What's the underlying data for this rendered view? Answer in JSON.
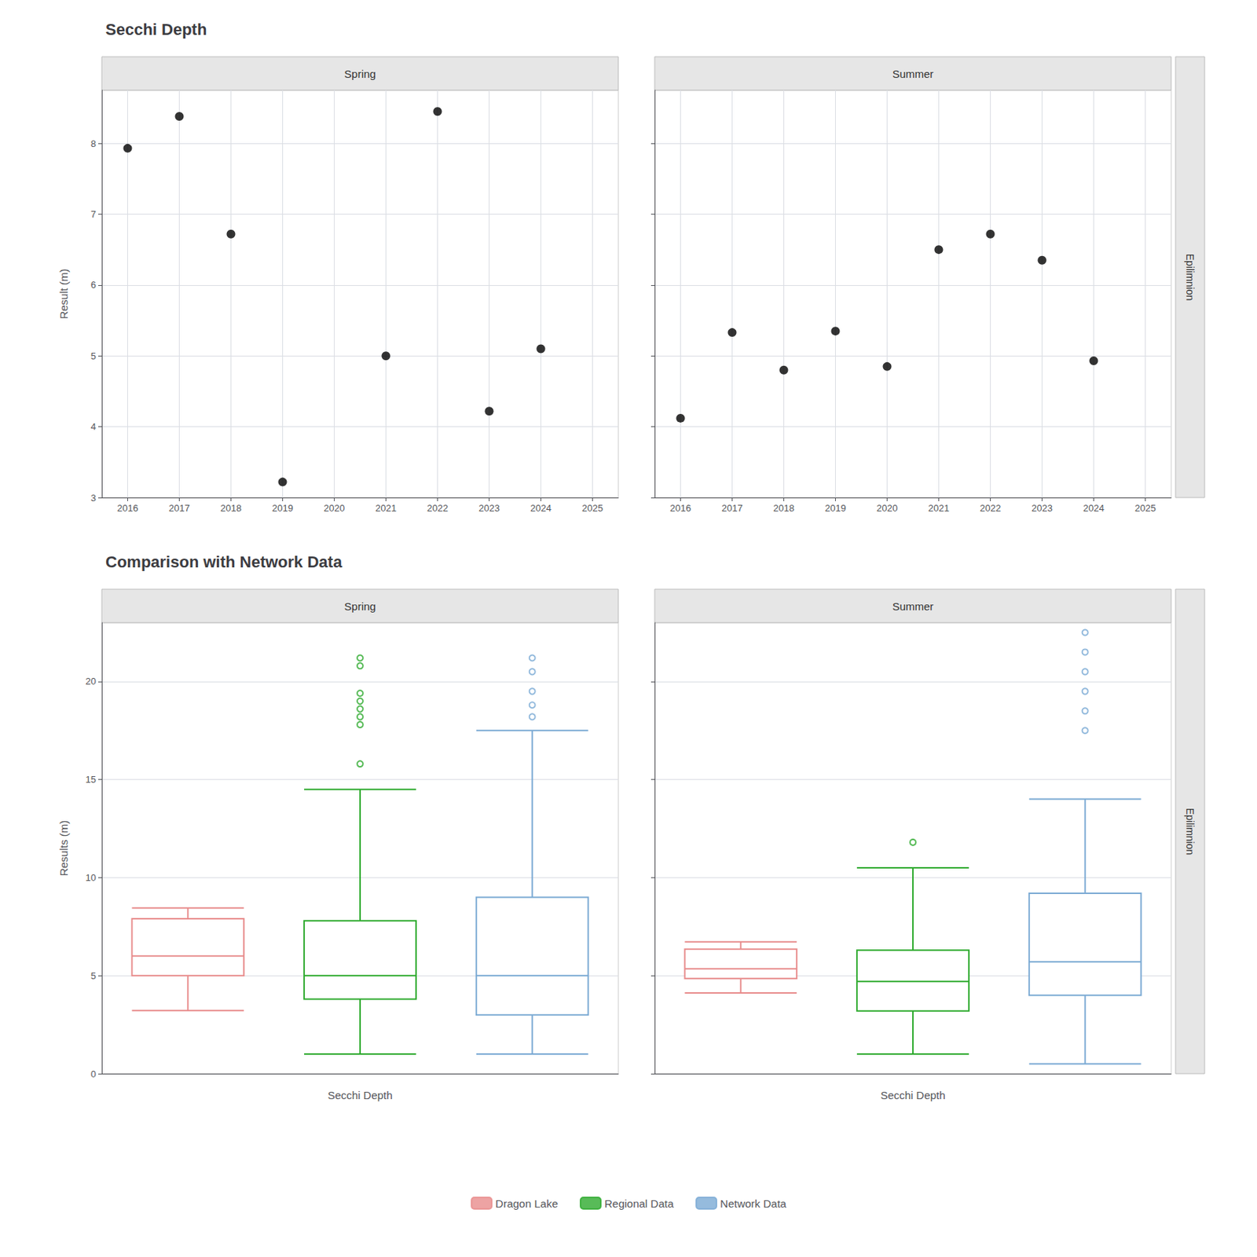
{
  "chart_data": [
    {
      "type": "scatter",
      "title": "Secchi Depth",
      "ylabel": "Result (m)",
      "annotation": "Epilimnion",
      "color": "#000000",
      "xlim": [
        2015.5,
        2025.5
      ],
      "xticks": [
        2016,
        2017,
        2018,
        2019,
        2020,
        2021,
        2022,
        2023,
        2024,
        2025
      ],
      "ylim": [
        3.0,
        8.75
      ],
      "yticks": [
        3,
        4,
        5,
        6,
        7,
        8
      ],
      "grid": true,
      "panels": [
        {
          "title": "Spring",
          "x": [
            2016,
            2017,
            2018,
            2019,
            2021,
            2022,
            2023,
            2024
          ],
          "values": [
            7.93,
            8.38,
            6.72,
            3.22,
            5.0,
            8.45,
            4.22,
            5.1
          ]
        },
        {
          "title": "Summer",
          "x": [
            2016,
            2017,
            2018,
            2019,
            2020,
            2021,
            2022,
            2023,
            2024
          ],
          "values": [
            4.12,
            5.33,
            4.8,
            5.35,
            4.85,
            6.5,
            6.72,
            6.35,
            4.93
          ]
        }
      ]
    },
    {
      "type": "boxplot",
      "title": "Comparison with Network Data",
      "ylabel": "Results (m)",
      "xlabel": "Secchi Depth",
      "annotation": "Epilimnion",
      "ylim": [
        0,
        23
      ],
      "yticks": [
        0,
        5,
        10,
        15,
        20
      ],
      "grid": true,
      "legend": "bottom",
      "panels": [
        {
          "title": "Spring"
        },
        {
          "title": "Summer"
        }
      ],
      "series": [
        {
          "name": "Dragon Lake",
          "color": "#E88C8C",
          "values": [
            {
              "whisker_low": 3.22,
              "q1": 5.0,
              "median": 6.0,
              "q3": 7.9,
              "whisker_high": 8.45,
              "outliers": []
            },
            {
              "whisker_low": 4.12,
              "q1": 4.85,
              "median": 5.35,
              "q3": 6.35,
              "whisker_high": 6.72,
              "outliers": []
            }
          ]
        },
        {
          "name": "Regional Data",
          "color": "#2EAA2E",
          "values": [
            {
              "whisker_low": 1.0,
              "q1": 3.8,
              "median": 5.0,
              "q3": 7.8,
              "whisker_high": 14.5,
              "outliers": [
                15.8,
                17.8,
                18.2,
                18.6,
                19.0,
                19.4,
                20.8,
                21.2
              ]
            },
            {
              "whisker_low": 1.0,
              "q1": 3.2,
              "median": 4.7,
              "q3": 6.3,
              "whisker_high": 10.5,
              "outliers": [
                11.8
              ]
            }
          ]
        },
        {
          "name": "Network Data",
          "color": "#7BAAD4",
          "values": [
            {
              "whisker_low": 1.0,
              "q1": 3.0,
              "median": 5.0,
              "q3": 9.0,
              "whisker_high": 17.5,
              "outliers": [
                18.2,
                18.8,
                19.5,
                20.5,
                21.2
              ]
            },
            {
              "whisker_low": 0.5,
              "q1": 4.0,
              "median": 5.7,
              "q3": 9.2,
              "whisker_high": 14.0,
              "outliers": [
                17.5,
                18.5,
                19.5,
                20.5,
                21.5,
                22.5
              ]
            }
          ]
        }
      ]
    }
  ]
}
